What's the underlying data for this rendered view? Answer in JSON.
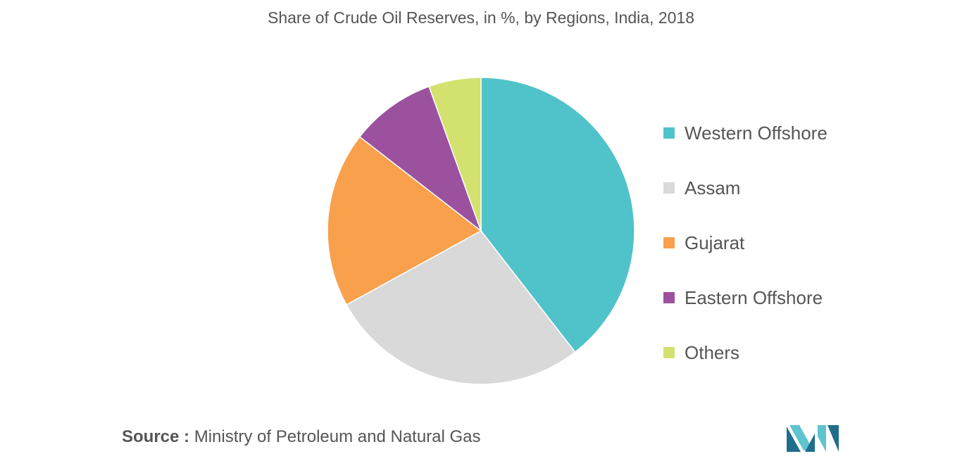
{
  "chart_data": {
    "type": "pie",
    "title": "Share of Crude Oil Reserves, in %, by Regions, India, 2018",
    "categories": [
      "Western Offshore",
      "Assam",
      "Gujarat",
      "Eastern Offshore",
      "Others"
    ],
    "values": [
      39.5,
      27.5,
      18.5,
      9,
      5.5
    ],
    "colors": [
      "#4fc3c9",
      "#d9d9d9",
      "#f9a04c",
      "#9c519e",
      "#d3e16f"
    ],
    "legend": "right",
    "start_angle": "12 o'clock",
    "direction": "clockwise"
  },
  "source": {
    "label": "Source :",
    "text": "Ministry of Petroleum and Natural Gas"
  },
  "logo": {
    "icon": "mordor-intelligence-logo-icon",
    "colors": [
      "#1f6e8c",
      "#5ec4cf"
    ]
  }
}
